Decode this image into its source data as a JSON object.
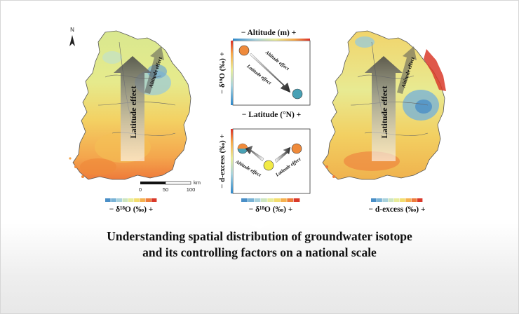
{
  "caption": {
    "line1": "Understanding spatial distribution of groundwater isotope",
    "line2": "and its controlling factors on a national scale"
  },
  "left_map": {
    "north_label": "N",
    "arrow_main": "Latitude effect",
    "arrow_side": "Altitude effect",
    "scale_unit": "km",
    "scale_ticks": [
      "0",
      "50",
      "100"
    ],
    "legend_label": "− δ¹⁸O (‰) +"
  },
  "right_map": {
    "arrow_main": "Latitude effect",
    "arrow_side": "Altitude effect",
    "legend_label": "− d-excess (‰) +"
  },
  "panel_top": {
    "top_axis": "−  Altitude (m)  +",
    "left_axis": "− δ¹⁸O (‰) +",
    "bottom_axis": "−  Latitude (°N) +",
    "diag_top": "Altitude effect",
    "diag_bottom": "Latitude effect"
  },
  "panel_bottom": {
    "left_axis": "− d-excess (‰) +",
    "bottom_axis": "−  δ¹⁸O (‰) +",
    "left_effect": "Altitude effect",
    "right_effect": "Latitude effect"
  },
  "colors": {
    "diverging": [
      "#4a8fc7",
      "#79b3d6",
      "#a9d2dc",
      "#cde5c0",
      "#e8ec9a",
      "#f3dd6e",
      "#f5b14f",
      "#ee7d3c",
      "#d9392a"
    ],
    "axis_blue": "#2f87c8",
    "axis_red": "#d9302a",
    "circle_orange": "#ef8a3b",
    "circle_teal": "#49a1b5",
    "circle_yellow": "#f2ea45"
  }
}
